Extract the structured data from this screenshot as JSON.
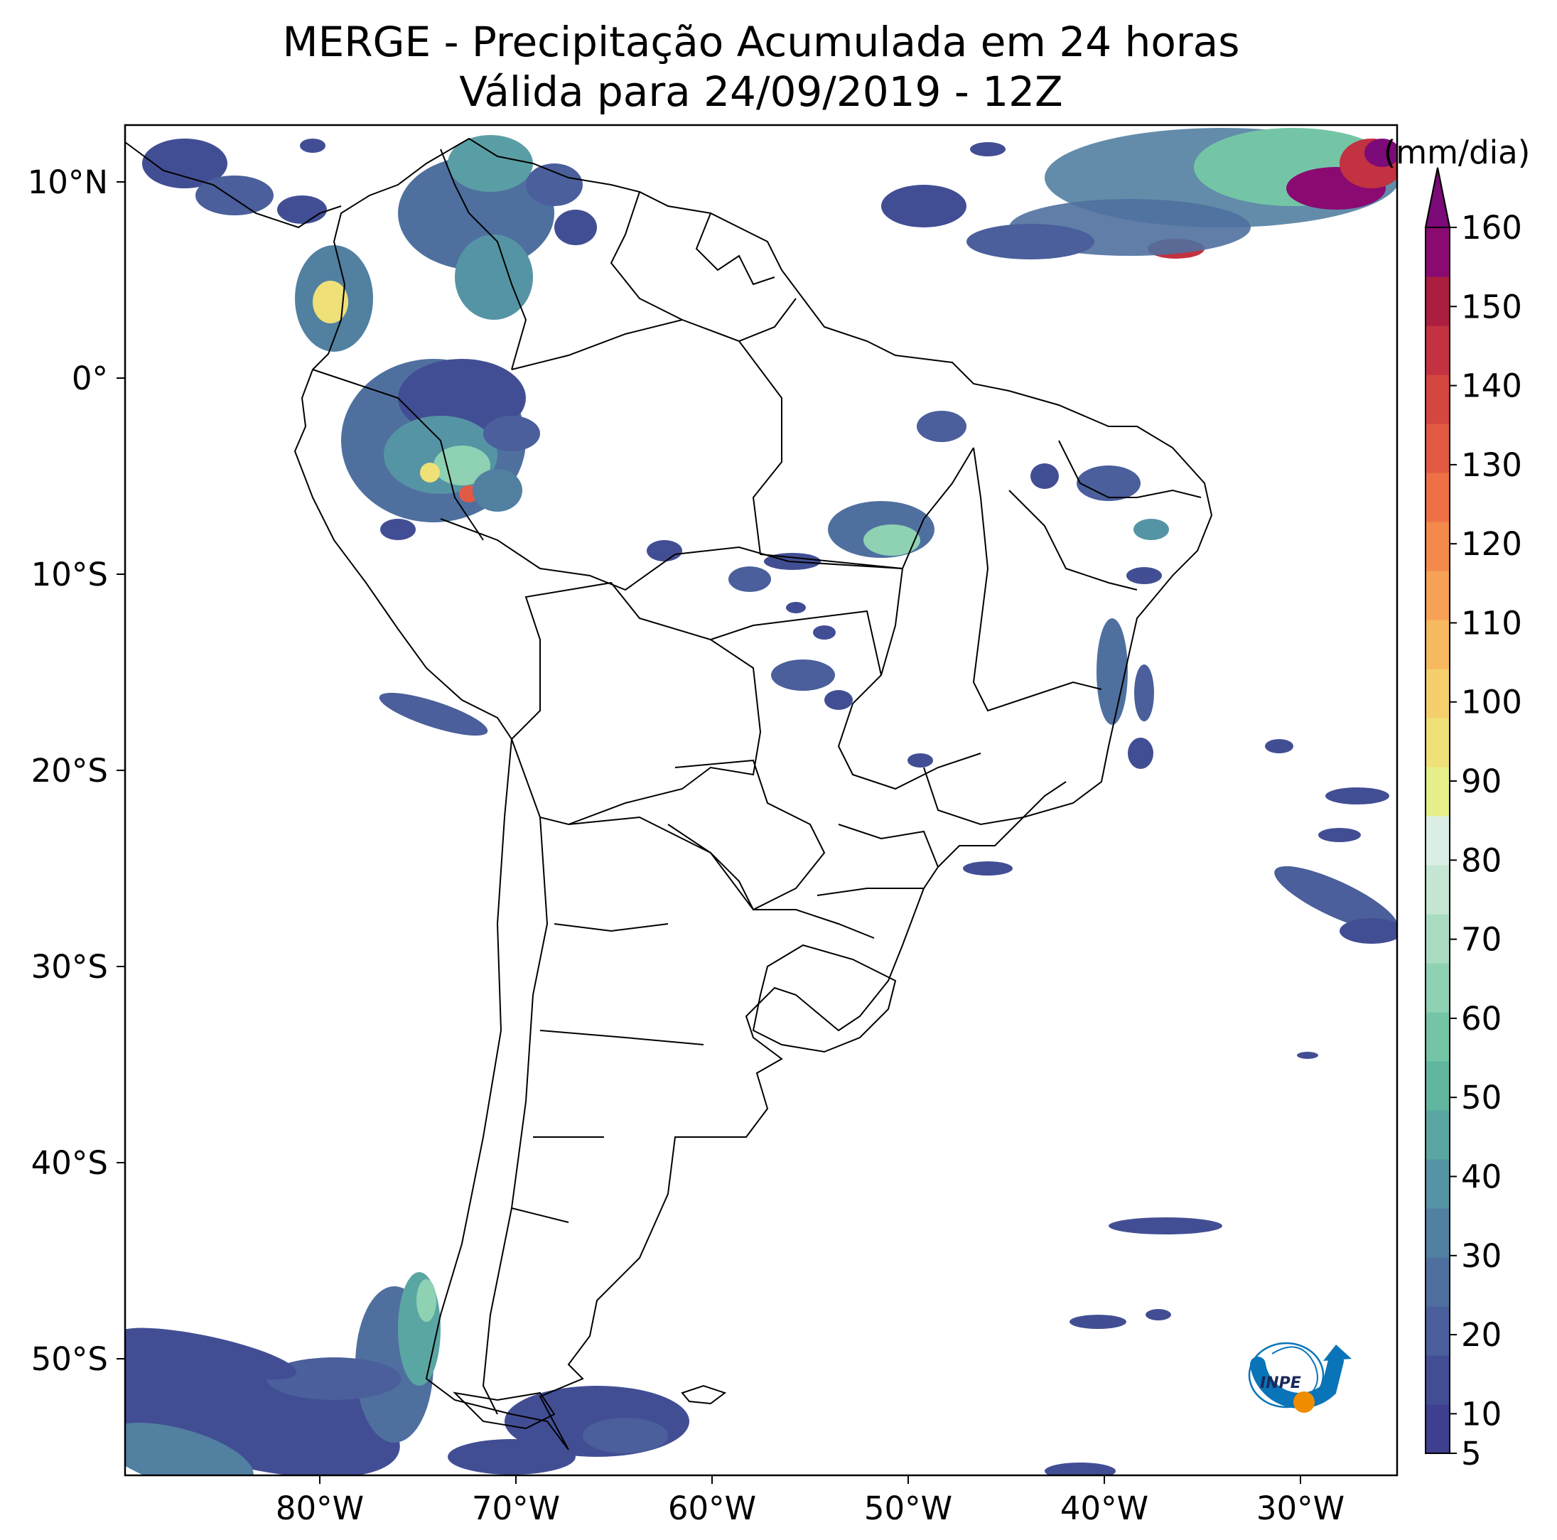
{
  "title": {
    "line1": "MERGE - Precipitação Acumulada em 24 horas",
    "line2": "Válida para 24/09/2019 - 12Z"
  },
  "map": {
    "lat_labels": [
      "10°N",
      "0°",
      "10°S",
      "20°S",
      "30°S",
      "40°S",
      "50°S"
    ],
    "lon_labels": [
      "80°W",
      "70°W",
      "60°W",
      "50°W",
      "40°W",
      "30°W"
    ]
  },
  "colorbar": {
    "unit": "(mm/dia)",
    "tick_labels": [
      "5",
      "10",
      "20",
      "30",
      "40",
      "50",
      "60",
      "70",
      "80",
      "90",
      "100",
      "110",
      "120",
      "130",
      "140",
      "150",
      "160"
    ],
    "colors": [
      "#3e3f8f",
      "#424e94",
      "#4a5f9b",
      "#4f709f",
      "#5180a1",
      "#5594a4",
      "#5aa6a3",
      "#60b69f",
      "#74c5a6",
      "#8fd1b3",
      "#aadcc2",
      "#c4e6d2",
      "#dbeee5",
      "#e6ef8a",
      "#efe077",
      "#f5cf6b",
      "#f6b960",
      "#f6a156",
      "#f38a4c",
      "#ee7047",
      "#e25a43",
      "#d44640",
      "#c23240",
      "#ab1e3f",
      "#8a0a72"
    ],
    "extend_color": "#7c0a78"
  },
  "logo": {
    "text": "INPE"
  }
}
